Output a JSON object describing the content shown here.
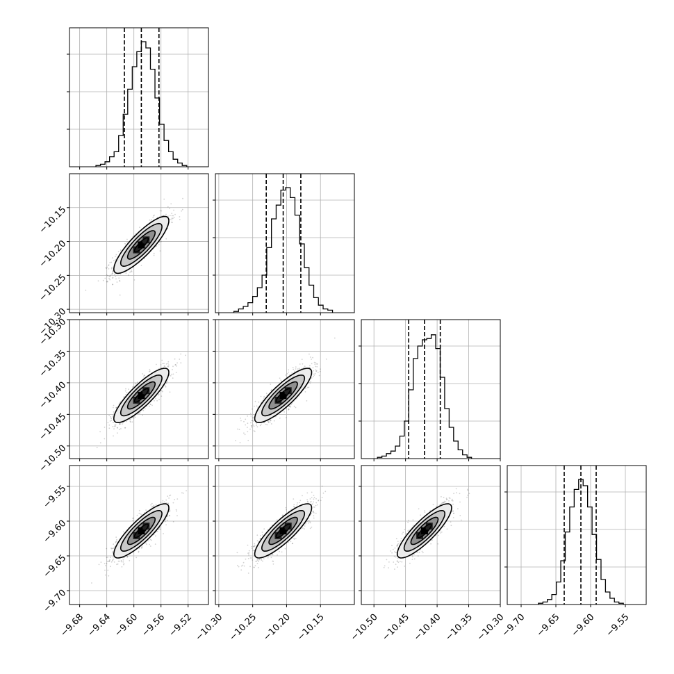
{
  "chart_data": {
    "type": "corner",
    "variables": [
      {
        "name": "",
        "range": [
          -9.695,
          -9.49
        ],
        "ticks": [
          -9.68,
          -9.64,
          -9.6,
          -9.56,
          -9.52
        ],
        "tick_labels": [
          "−9.68",
          "−9.64",
          "−9.60",
          "−9.56",
          "−9.52"
        ],
        "center": -9.589,
        "sigma": 0.0203,
        "quantiles": [
          -9.614,
          -9.589,
          -9.563
        ],
        "hist_rel": [
          0.01,
          0.02,
          0.04,
          0.08,
          0.12,
          0.25,
          0.42,
          0.62,
          0.8,
          0.92,
          1.0,
          0.95,
          0.78,
          0.55,
          0.34,
          0.21,
          0.12,
          0.06,
          0.03,
          0.01
        ]
      },
      {
        "name": "",
        "range": [
          -10.305,
          -10.1
        ],
        "ticks": [
          -10.3,
          -10.25,
          -10.2,
          -10.15
        ],
        "tick_labels": [
          "−10.30",
          "−10.25",
          "−10.20",
          "−10.15"
        ],
        "center": -10.205,
        "sigma": 0.021,
        "quantiles": [
          -10.23,
          -10.205,
          -10.179
        ],
        "hist_rel": [
          0.01,
          0.03,
          0.05,
          0.08,
          0.13,
          0.2,
          0.3,
          0.52,
          0.75,
          0.86,
          0.98,
          1.0,
          0.92,
          0.78,
          0.55,
          0.36,
          0.22,
          0.12,
          0.06,
          0.03,
          0.02
        ]
      },
      {
        "name": "",
        "range": [
          -10.52,
          -10.3
        ],
        "ticks": [
          -10.5,
          -10.45,
          -10.4,
          -10.35,
          -10.3
        ],
        "tick_labels": [
          "−10.50",
          "−10.45",
          "−10.40",
          "−10.35",
          "−10.30"
        ],
        "center": -10.42,
        "sigma": 0.0215,
        "quantiles": [
          -10.445,
          -10.42,
          -10.395
        ],
        "hist_rel": [
          0.01,
          0.02,
          0.04,
          0.06,
          0.1,
          0.18,
          0.3,
          0.55,
          0.8,
          0.9,
          0.95,
          0.96,
          0.99,
          0.88,
          0.65,
          0.4,
          0.25,
          0.14,
          0.07,
          0.03,
          0.01
        ]
      },
      {
        "name": "",
        "range": [
          -9.72,
          -9.52
        ],
        "ticks": [
          -9.7,
          -9.65,
          -9.6,
          -9.55
        ],
        "tick_labels": [
          "−9.70",
          "−9.65",
          "−9.60",
          "−9.55"
        ],
        "center": -9.614,
        "sigma": 0.0195,
        "quantiles": [
          -9.638,
          -9.614,
          -9.592
        ],
        "hist_rel": [
          0.01,
          0.02,
          0.04,
          0.08,
          0.18,
          0.35,
          0.58,
          0.78,
          0.92,
          1.0,
          0.95,
          0.78,
          0.56,
          0.36,
          0.2,
          0.1,
          0.05,
          0.02,
          0.01
        ]
      }
    ],
    "correlation": 0.85,
    "grid": true,
    "contour_levels_sigma": [
      0.5,
      1.0,
      1.5,
      2.0
    ]
  }
}
